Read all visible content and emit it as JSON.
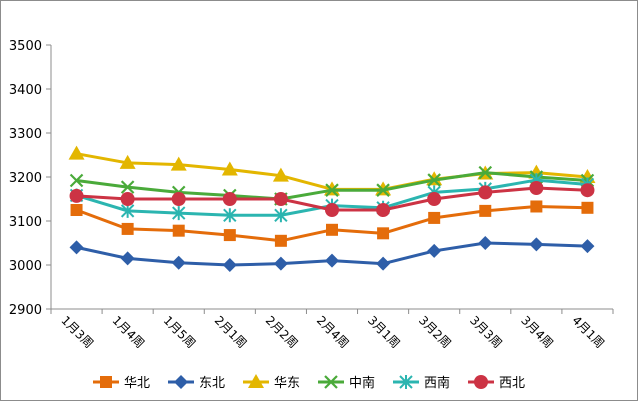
{
  "chart_data": {
    "type": "line",
    "categories": [
      "1月3周",
      "1月4周",
      "1月5周",
      "2月1周",
      "2月2周",
      "2月4周",
      "3月1周",
      "3月2周",
      "3月3周",
      "3月4周",
      "4月1周"
    ],
    "ylim": [
      2900,
      3500
    ],
    "yticks": [
      2900,
      3000,
      3100,
      3200,
      3300,
      3400,
      3500
    ],
    "grid": false,
    "legend": "bottom",
    "series": [
      {
        "name": "华北",
        "color": "#E46C0A",
        "marker": "square",
        "values": [
          3125,
          3082,
          3078,
          3068,
          3055,
          3080,
          3072,
          3107,
          3123,
          3133,
          3130
        ]
      },
      {
        "name": "东北",
        "color": "#2E5EA8",
        "marker": "diamond",
        "values": [
          3040,
          3015,
          3005,
          3000,
          3003,
          3010,
          3003,
          3032,
          3050,
          3047,
          3043
        ]
      },
      {
        "name": "华东",
        "color": "#E3B600",
        "marker": "triangle",
        "values": [
          3253,
          3232,
          3228,
          3217,
          3203,
          3172,
          3172,
          3195,
          3208,
          3210,
          3200
        ]
      },
      {
        "name": "中南",
        "color": "#4AAA3A",
        "marker": "x",
        "values": [
          3192,
          3177,
          3165,
          3158,
          3150,
          3170,
          3170,
          3193,
          3210,
          3200,
          3192
        ]
      },
      {
        "name": "西南",
        "color": "#2BB5B0",
        "marker": "star",
        "values": [
          3158,
          3123,
          3118,
          3113,
          3113,
          3135,
          3130,
          3165,
          3173,
          3193,
          3183
        ]
      },
      {
        "name": "西北",
        "color": "#CC3344",
        "marker": "circle",
        "values": [
          3157,
          3150,
          3150,
          3150,
          3150,
          3125,
          3125,
          3150,
          3165,
          3175,
          3170
        ]
      }
    ]
  }
}
